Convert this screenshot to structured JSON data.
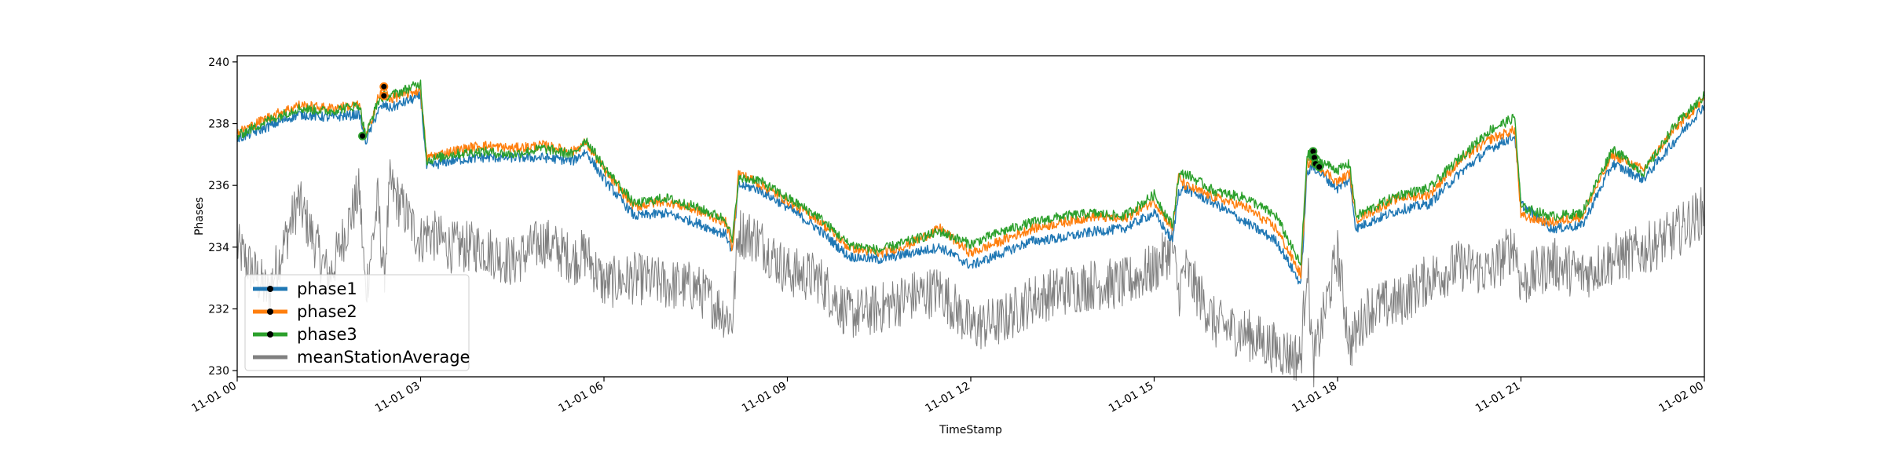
{
  "chart_data": {
    "type": "line",
    "xlabel": "TimeStamp",
    "ylabel": "Phases",
    "ylim": [
      229.8,
      240.2
    ],
    "xlim": [
      "11-01 00:00",
      "11-02 00:00"
    ],
    "x_ticks": [
      "11-01 00",
      "11-01 03",
      "11-01 06",
      "11-01 09",
      "11-01 12",
      "11-01 15",
      "11-01 18",
      "11-01 21",
      "11-02 00"
    ],
    "x_tick_hours": [
      0,
      3,
      6,
      9,
      12,
      15,
      18,
      21,
      24
    ],
    "y_ticks": [
      230,
      232,
      234,
      236,
      238,
      240
    ],
    "grid": false,
    "legend_position": "lower-left",
    "x_hours": [
      0.0,
      0.5,
      1.0,
      1.5,
      2.0,
      2.1,
      2.3,
      2.4,
      2.5,
      3.0,
      3.1,
      3.5,
      4.0,
      4.5,
      5.0,
      5.5,
      5.7,
      6.0,
      6.5,
      7.0,
      7.5,
      8.0,
      8.1,
      8.2,
      8.5,
      9.0,
      9.5,
      10.0,
      10.5,
      11.0,
      11.5,
      12.0,
      12.5,
      13.0,
      13.5,
      14.0,
      14.5,
      15.0,
      15.3,
      15.4,
      15.5,
      16.0,
      16.5,
      17.0,
      17.4,
      17.5,
      17.6,
      18.0,
      18.2,
      18.3,
      18.5,
      19.0,
      19.5,
      20.0,
      20.5,
      20.9,
      21.0,
      21.5,
      22.0,
      22.5,
      23.0,
      23.5,
      24.0
    ],
    "series": [
      {
        "name": "phase1",
        "color": "#1f77b4",
        "values": [
          237.5,
          237.9,
          238.3,
          238.2,
          238.3,
          237.4,
          238.4,
          238.6,
          238.5,
          238.9,
          236.6,
          236.8,
          236.9,
          236.9,
          236.9,
          236.8,
          237.1,
          236.2,
          235.0,
          235.1,
          234.8,
          234.4,
          233.8,
          236.0,
          235.9,
          235.3,
          234.6,
          233.7,
          233.6,
          233.8,
          234.0,
          233.4,
          233.8,
          234.2,
          234.3,
          234.5,
          234.6,
          235.1,
          234.2,
          235.8,
          235.9,
          235.4,
          234.8,
          234.2,
          232.8,
          236.4,
          236.6,
          235.9,
          236.2,
          234.6,
          234.8,
          235.2,
          235.4,
          236.4,
          237.2,
          237.6,
          235.4,
          234.6,
          234.7,
          236.7,
          236.2,
          237.4,
          238.6
        ]
      },
      {
        "name": "phase2",
        "color": "#ff7f0e",
        "values": [
          237.7,
          238.2,
          238.6,
          238.5,
          238.6,
          237.5,
          238.8,
          239.2,
          238.8,
          239.1,
          236.9,
          237.1,
          237.3,
          237.2,
          237.3,
          237.1,
          237.4,
          236.5,
          235.3,
          235.5,
          235.2,
          234.8,
          233.9,
          236.4,
          236.1,
          235.5,
          234.9,
          234.0,
          233.8,
          234.1,
          234.6,
          233.8,
          234.2,
          234.6,
          234.8,
          235.0,
          234.9,
          235.5,
          234.6,
          236.3,
          236.0,
          235.6,
          235.3,
          234.6,
          233.1,
          236.7,
          236.8,
          236.1,
          236.4,
          234.9,
          235.1,
          235.6,
          235.7,
          236.8,
          237.5,
          237.8,
          235.0,
          234.8,
          235.0,
          237.0,
          236.5,
          237.8,
          238.8
        ]
      },
      {
        "name": "phase3",
        "color": "#2ca02c",
        "values": [
          237.6,
          238.1,
          238.5,
          238.4,
          238.6,
          237.6,
          238.7,
          238.9,
          238.9,
          239.3,
          236.8,
          237.0,
          237.1,
          237.0,
          237.2,
          237.0,
          237.5,
          236.6,
          235.4,
          235.6,
          235.3,
          234.9,
          234.2,
          236.2,
          236.2,
          235.6,
          235.0,
          234.1,
          233.9,
          234.2,
          234.5,
          234.1,
          234.5,
          234.8,
          235.0,
          235.1,
          235.0,
          235.7,
          234.7,
          236.3,
          236.4,
          235.8,
          235.6,
          235.0,
          233.4,
          237.0,
          236.9,
          236.5,
          236.7,
          235.0,
          235.2,
          235.7,
          235.9,
          236.9,
          237.8,
          238.2,
          235.3,
          235.0,
          235.1,
          237.2,
          236.4,
          237.9,
          238.9
        ]
      },
      {
        "name": "meanStationAverage",
        "color": "#808080",
        "values": [
          234.0,
          232.5,
          235.5,
          233.0,
          235.8,
          232.5,
          235.5,
          233.0,
          236.0,
          234.2,
          234.5,
          234.0,
          234.0,
          233.5,
          234.2,
          233.6,
          233.8,
          232.8,
          233.0,
          232.8,
          232.7,
          231.8,
          231.6,
          234.5,
          234.3,
          233.2,
          233.0,
          231.8,
          232.0,
          232.4,
          232.6,
          231.4,
          231.6,
          232.3,
          232.6,
          232.8,
          232.8,
          233.3,
          234.0,
          232.5,
          233.3,
          231.5,
          231.2,
          230.7,
          230.4,
          233.6,
          230.2,
          233.8,
          230.8,
          231.2,
          232.0,
          232.2,
          233.0,
          233.4,
          233.2,
          234.1,
          232.8,
          233.5,
          233.1,
          233.6,
          233.9,
          234.4,
          235.2
        ]
      }
    ],
    "markers": [
      {
        "series": "phase3",
        "hour": 2.05,
        "value": 237.6
      },
      {
        "series": "phase2",
        "hour": 2.4,
        "value": 239.2
      },
      {
        "series": "phase2",
        "hour": 2.4,
        "value": 238.9
      },
      {
        "series": "phase3",
        "hour": 17.6,
        "value": 237.1
      },
      {
        "series": "phase3",
        "hour": 17.62,
        "value": 236.9
      },
      {
        "series": "phase3",
        "hour": 17.64,
        "value": 236.7
      },
      {
        "series": "phase3",
        "hour": 17.7,
        "value": 236.6
      }
    ]
  }
}
